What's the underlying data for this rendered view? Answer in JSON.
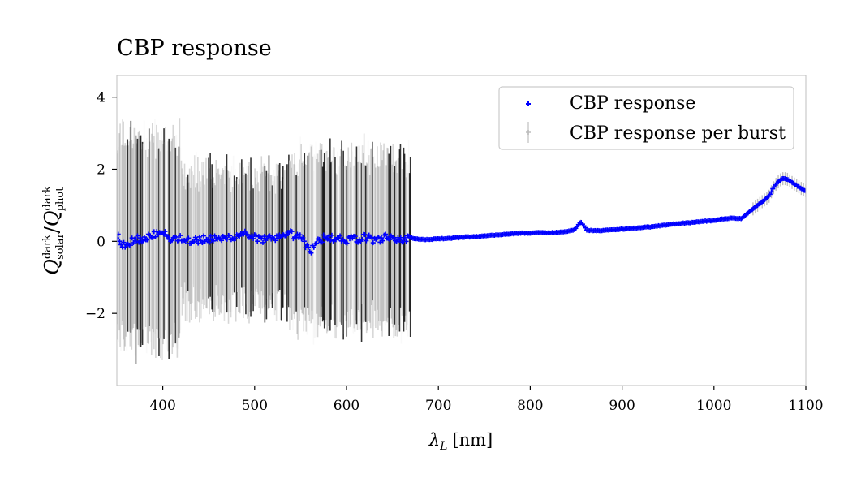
{
  "chart_data": {
    "type": "scatter",
    "title": "CBP response",
    "xlabel_symbol": "λ",
    "xlabel_sub": "L",
    "xlabel_unit": "[nm]",
    "ylabel": {
      "num": "Q",
      "num_sup": "dark",
      "num_sub": "solar",
      "sep": "/",
      "den": "Q",
      "den_sup": "dark",
      "den_sub": "phot"
    },
    "xlim": [
      350,
      1100
    ],
    "ylim": [
      -4,
      4.6
    ],
    "x_ticks": [
      400,
      500,
      600,
      700,
      800,
      900,
      1000,
      1100
    ],
    "y_ticks": [
      4,
      2,
      0,
      -2
    ],
    "y_tick_labels": [
      "4",
      "2",
      "0",
      "−2"
    ],
    "legend": {
      "position": "top-right",
      "entries": [
        "CBP response",
        "CBP response per burst"
      ]
    },
    "colors": {
      "response": "#0000ff",
      "per_burst": "#000000",
      "per_burst_errorbar": "#d9d9d9"
    },
    "series": [
      {
        "name": "CBP response",
        "x": [
          350,
          360,
          370,
          380,
          390,
          400,
          410,
          420,
          430,
          440,
          450,
          460,
          470,
          480,
          490,
          500,
          510,
          520,
          530,
          540,
          550,
          560,
          570,
          580,
          590,
          600,
          610,
          620,
          630,
          640,
          650,
          660,
          670,
          680,
          690,
          700,
          710,
          720,
          730,
          740,
          750,
          760,
          770,
          780,
          790,
          800,
          810,
          820,
          830,
          840,
          848,
          852,
          855,
          858,
          862,
          866,
          870,
          880,
          890,
          900,
          910,
          920,
          930,
          940,
          950,
          960,
          970,
          980,
          990,
          1000,
          1010,
          1020,
          1030,
          1040,
          1050,
          1060,
          1064,
          1068,
          1072,
          1076,
          1080,
          1084,
          1088,
          1092,
          1096,
          1100
        ],
        "y": [
          0.15,
          -0.2,
          0.1,
          0.05,
          0.2,
          0.3,
          0.05,
          0.1,
          0.0,
          0.05,
          0.05,
          0.05,
          0.1,
          0.15,
          0.25,
          0.1,
          0.05,
          0.05,
          0.1,
          0.2,
          0.1,
          -0.3,
          0.05,
          0.1,
          0.1,
          0.05,
          0.05,
          0.1,
          0.05,
          0.1,
          0.1,
          0.05,
          0.1,
          0.05,
          0.05,
          0.07,
          0.08,
          0.1,
          0.12,
          0.13,
          0.15,
          0.17,
          0.19,
          0.21,
          0.23,
          0.23,
          0.24,
          0.24,
          0.25,
          0.27,
          0.32,
          0.45,
          0.55,
          0.45,
          0.3,
          0.3,
          0.3,
          0.3,
          0.32,
          0.34,
          0.36,
          0.38,
          0.4,
          0.43,
          0.46,
          0.49,
          0.51,
          0.53,
          0.56,
          0.58,
          0.62,
          0.65,
          0.63,
          0.85,
          1.05,
          1.25,
          1.45,
          1.6,
          1.7,
          1.75,
          1.72,
          1.65,
          1.58,
          1.52,
          1.45,
          1.4
        ]
      },
      {
        "name": "CBP response per burst",
        "x_range": [
          350,
          670
        ],
        "y_center": 0.0,
        "y_band": [
          -2.6,
          2.7
        ]
      }
    ]
  }
}
